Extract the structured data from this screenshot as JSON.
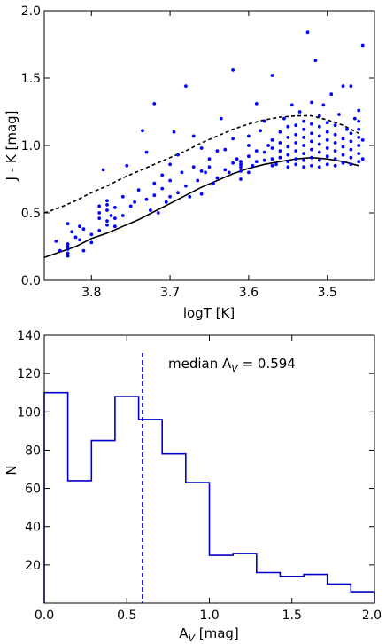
{
  "chart_data": [
    {
      "type": "scatter",
      "xlabel": "logT [K]",
      "ylabel": "J - K [mag]",
      "xlim": [
        3.86,
        3.44
      ],
      "ylim": [
        0.0,
        2.0
      ],
      "x_inverted": true,
      "xticks": [
        "3.8",
        "3.7",
        "3.6",
        "3.5"
      ],
      "xtick_values": [
        3.8,
        3.7,
        3.6,
        3.5
      ],
      "yticks": [
        "0.0",
        "0.5",
        "1.0",
        "1.5",
        "2.0"
      ],
      "ytick_values": [
        0.0,
        0.5,
        1.0,
        1.5,
        2.0
      ],
      "point_color": "#0000ff",
      "lines": [
        {
          "style": "solid",
          "color": "#000000",
          "x": [
            3.86,
            3.84,
            3.82,
            3.8,
            3.78,
            3.76,
            3.74,
            3.72,
            3.7,
            3.68,
            3.66,
            3.64,
            3.62,
            3.6,
            3.58,
            3.56,
            3.54,
            3.52,
            3.5,
            3.48,
            3.46
          ],
          "y": [
            0.17,
            0.21,
            0.25,
            0.31,
            0.35,
            0.4,
            0.45,
            0.51,
            0.57,
            0.63,
            0.69,
            0.74,
            0.79,
            0.83,
            0.86,
            0.88,
            0.9,
            0.91,
            0.9,
            0.88,
            0.85
          ]
        },
        {
          "style": "dashed",
          "color": "#000000",
          "x": [
            3.86,
            3.84,
            3.82,
            3.8,
            3.78,
            3.76,
            3.74,
            3.72,
            3.7,
            3.68,
            3.66,
            3.64,
            3.62,
            3.6,
            3.58,
            3.56,
            3.54,
            3.52,
            3.5,
            3.48,
            3.46
          ],
          "y": [
            0.5,
            0.54,
            0.59,
            0.65,
            0.7,
            0.76,
            0.81,
            0.86,
            0.91,
            0.96,
            1.02,
            1.07,
            1.12,
            1.16,
            1.19,
            1.21,
            1.22,
            1.22,
            1.19,
            1.15,
            1.09
          ]
        }
      ],
      "points": [
        [
          3.845,
          0.29
        ],
        [
          3.84,
          0.22
        ],
        [
          3.83,
          0.18
        ],
        [
          3.83,
          0.2
        ],
        [
          3.83,
          0.23
        ],
        [
          3.83,
          0.25
        ],
        [
          3.83,
          0.27
        ],
        [
          3.83,
          0.42
        ],
        [
          3.825,
          0.36
        ],
        [
          3.82,
          0.32
        ],
        [
          3.815,
          0.4
        ],
        [
          3.815,
          0.3
        ],
        [
          3.81,
          0.22
        ],
        [
          3.81,
          0.38
        ],
        [
          3.8,
          0.28
        ],
        [
          3.8,
          0.34
        ],
        [
          3.79,
          0.37
        ],
        [
          3.79,
          0.46
        ],
        [
          3.79,
          0.5
        ],
        [
          3.79,
          0.55
        ],
        [
          3.785,
          0.82
        ],
        [
          3.78,
          0.41
        ],
        [
          3.78,
          0.44
        ],
        [
          3.78,
          0.52
        ],
        [
          3.78,
          0.56
        ],
        [
          3.78,
          0.59
        ],
        [
          3.775,
          0.48
        ],
        [
          3.77,
          0.4
        ],
        [
          3.77,
          0.46
        ],
        [
          3.77,
          0.54
        ],
        [
          3.76,
          0.48
        ],
        [
          3.76,
          0.62
        ],
        [
          3.755,
          0.85
        ],
        [
          3.75,
          0.55
        ],
        [
          3.745,
          0.58
        ],
        [
          3.74,
          0.67
        ],
        [
          3.735,
          1.11
        ],
        [
          3.73,
          0.6
        ],
        [
          3.73,
          0.95
        ],
        [
          3.725,
          0.52
        ],
        [
          3.72,
          0.63
        ],
        [
          3.72,
          0.72
        ],
        [
          3.72,
          1.31
        ],
        [
          3.715,
          0.5
        ],
        [
          3.71,
          0.68
        ],
        [
          3.71,
          0.78
        ],
        [
          3.705,
          0.58
        ],
        [
          3.7,
          0.62
        ],
        [
          3.7,
          0.74
        ],
        [
          3.7,
          0.86
        ],
        [
          3.695,
          1.1
        ],
        [
          3.69,
          0.65
        ],
        [
          3.69,
          0.93
        ],
        [
          3.685,
          0.8
        ],
        [
          3.68,
          1.44
        ],
        [
          3.68,
          0.7
        ],
        [
          3.675,
          0.62
        ],
        [
          3.67,
          0.84
        ],
        [
          3.67,
          1.07
        ],
        [
          3.665,
          0.74
        ],
        [
          3.66,
          0.64
        ],
        [
          3.66,
          0.81
        ],
        [
          3.66,
          0.98
        ],
        [
          3.655,
          0.8
        ],
        [
          3.65,
          0.84
        ],
        [
          3.65,
          0.9
        ],
        [
          3.645,
          0.72
        ],
        [
          3.64,
          0.76
        ],
        [
          3.64,
          0.96
        ],
        [
          3.635,
          1.2
        ],
        [
          3.63,
          0.82
        ],
        [
          3.63,
          0.97
        ],
        [
          3.625,
          0.8
        ],
        [
          3.62,
          0.87
        ],
        [
          3.62,
          1.05
        ],
        [
          3.62,
          1.56
        ],
        [
          3.615,
          0.9
        ],
        [
          3.61,
          0.75
        ],
        [
          3.61,
          0.81
        ],
        [
          3.61,
          0.84
        ],
        [
          3.61,
          0.86
        ],
        [
          3.61,
          0.88
        ],
        [
          3.6,
          0.8
        ],
        [
          3.6,
          0.92
        ],
        [
          3.6,
          1.0
        ],
        [
          3.6,
          1.07
        ],
        [
          3.595,
          0.85
        ],
        [
          3.59,
          0.88
        ],
        [
          3.59,
          0.96
        ],
        [
          3.59,
          1.31
        ],
        [
          3.585,
          1.11
        ],
        [
          3.58,
          0.89
        ],
        [
          3.58,
          0.95
        ],
        [
          3.58,
          1.18
        ],
        [
          3.575,
          1.0
        ],
        [
          3.57,
          0.85
        ],
        [
          3.57,
          0.9
        ],
        [
          3.57,
          0.98
        ],
        [
          3.57,
          1.04
        ],
        [
          3.57,
          1.52
        ],
        [
          3.565,
          0.86
        ],
        [
          3.56,
          0.91
        ],
        [
          3.56,
          0.96
        ],
        [
          3.56,
          1.02
        ],
        [
          3.56,
          1.1
        ],
        [
          3.555,
          1.2
        ],
        [
          3.55,
          0.84
        ],
        [
          3.55,
          0.88
        ],
        [
          3.55,
          0.93
        ],
        [
          3.55,
          0.99
        ],
        [
          3.55,
          1.06
        ],
        [
          3.55,
          1.14
        ],
        [
          3.545,
          1.3
        ],
        [
          3.54,
          0.86
        ],
        [
          3.54,
          0.9
        ],
        [
          3.54,
          0.96
        ],
        [
          3.54,
          1.02
        ],
        [
          3.54,
          1.08
        ],
        [
          3.54,
          1.15
        ],
        [
          3.535,
          1.25
        ],
        [
          3.53,
          0.84
        ],
        [
          3.53,
          0.89
        ],
        [
          3.53,
          0.94
        ],
        [
          3.53,
          1.0
        ],
        [
          3.53,
          1.06
        ],
        [
          3.53,
          1.12
        ],
        [
          3.53,
          1.18
        ],
        [
          3.525,
          1.84
        ],
        [
          3.52,
          0.85
        ],
        [
          3.52,
          0.91
        ],
        [
          3.52,
          0.97
        ],
        [
          3.52,
          1.03
        ],
        [
          3.52,
          1.09
        ],
        [
          3.52,
          1.16
        ],
        [
          3.52,
          1.32
        ],
        [
          3.515,
          1.63
        ],
        [
          3.51,
          0.84
        ],
        [
          3.51,
          0.89
        ],
        [
          3.51,
          0.95
        ],
        [
          3.51,
          1.01
        ],
        [
          3.51,
          1.07
        ],
        [
          3.51,
          1.14
        ],
        [
          3.51,
          1.22
        ],
        [
          3.505,
          1.3
        ],
        [
          3.5,
          0.86
        ],
        [
          3.5,
          0.92
        ],
        [
          3.5,
          0.98
        ],
        [
          3.5,
          1.04
        ],
        [
          3.5,
          1.1
        ],
        [
          3.5,
          1.17
        ],
        [
          3.495,
          1.38
        ],
        [
          3.49,
          0.85
        ],
        [
          3.49,
          0.9
        ],
        [
          3.49,
          0.96
        ],
        [
          3.49,
          1.02
        ],
        [
          3.49,
          1.08
        ],
        [
          3.49,
          1.15
        ],
        [
          3.485,
          1.23
        ],
        [
          3.48,
          0.87
        ],
        [
          3.48,
          0.93
        ],
        [
          3.48,
          0.99
        ],
        [
          3.48,
          1.05
        ],
        [
          3.48,
          1.44
        ],
        [
          3.475,
          1.12
        ],
        [
          3.47,
          0.86
        ],
        [
          3.47,
          0.91
        ],
        [
          3.47,
          0.97
        ],
        [
          3.47,
          1.03
        ],
        [
          3.47,
          1.09
        ],
        [
          3.47,
          1.44
        ],
        [
          3.465,
          1.2
        ],
        [
          3.46,
          0.88
        ],
        [
          3.46,
          0.94
        ],
        [
          3.46,
          1.0
        ],
        [
          3.46,
          1.06
        ],
        [
          3.46,
          1.12
        ],
        [
          3.46,
          1.18
        ],
        [
          3.46,
          1.26
        ],
        [
          3.455,
          1.74
        ],
        [
          3.455,
          0.9
        ],
        [
          3.455,
          1.04
        ]
      ]
    },
    {
      "type": "histogram",
      "xlabel_main": "A",
      "xlabel_sub": "V",
      "xlabel_suffix": " [mag]",
      "ylabel": "N",
      "xlim": [
        0.0,
        2.0
      ],
      "ylim": [
        0,
        140
      ],
      "xticks": [
        "0.0",
        "0.5",
        "1.0",
        "1.5",
        "2.0"
      ],
      "xtick_values": [
        0.0,
        0.5,
        1.0,
        1.5,
        2.0
      ],
      "yticks": [
        "20",
        "40",
        "60",
        "80",
        "100",
        "120",
        "140"
      ],
      "ytick_values": [
        20,
        40,
        60,
        80,
        100,
        120,
        140
      ],
      "color": "#0000cc",
      "bin_edges": [
        0.0,
        0.1428,
        0.2857,
        0.4286,
        0.5714,
        0.7143,
        0.8571,
        1.0,
        1.1429,
        1.2857,
        1.4286,
        1.5714,
        1.7143,
        1.8571,
        2.0
      ],
      "counts": [
        110,
        64,
        85,
        108,
        96,
        78,
        63,
        25,
        26,
        16,
        14,
        15,
        10,
        6
      ],
      "median_value": 0.594,
      "annotation_main": "median A",
      "annotation_sub": "V",
      "annotation_suffix": " = 0.594"
    }
  ]
}
